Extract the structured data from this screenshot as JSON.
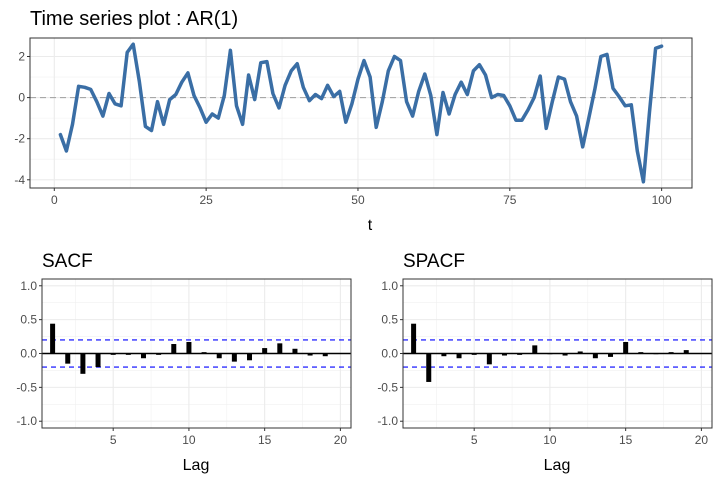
{
  "chart_data": [
    {
      "type": "line",
      "title": "Time series plot : AR(1)",
      "xlabel": "t",
      "ylabel": "",
      "xlim": [
        -4,
        105
      ],
      "ylim": [
        -4.4,
        2.9
      ],
      "x_ticks": [
        0,
        25,
        50,
        75,
        100
      ],
      "y_ticks": [
        -4,
        -2,
        0,
        2
      ],
      "x_tick_labels": [
        "0",
        "25",
        "50",
        "75",
        "100"
      ],
      "y_tick_labels": [
        "-4",
        "-2",
        "0",
        "2"
      ],
      "grid": true,
      "reference_line": 0,
      "line_color": "#3a6ea5",
      "ref_color": "#9e9e9e",
      "x": [
        1,
        2,
        3,
        4,
        5,
        6,
        7,
        8,
        9,
        10,
        11,
        12,
        13,
        14,
        15,
        16,
        17,
        18,
        19,
        20,
        21,
        22,
        23,
        24,
        25,
        26,
        27,
        28,
        29,
        30,
        31,
        32,
        33,
        34,
        35,
        36,
        37,
        38,
        39,
        40,
        41,
        42,
        43,
        44,
        45,
        46,
        47,
        48,
        49,
        50,
        51,
        52,
        53,
        54,
        55,
        56,
        57,
        58,
        59,
        60,
        61,
        62,
        63,
        64,
        65,
        66,
        67,
        68,
        69,
        70,
        71,
        72,
        73,
        74,
        75,
        76,
        77,
        78,
        79,
        80,
        81,
        82,
        83,
        84,
        85,
        86,
        87,
        88,
        89,
        90,
        91,
        92,
        93,
        94,
        95,
        96,
        97,
        98,
        99,
        100
      ],
      "values": [
        -1.8,
        -2.6,
        -1.3,
        0.55,
        0.5,
        0.4,
        -0.2,
        -0.9,
        0.2,
        -0.3,
        -0.4,
        2.2,
        2.6,
        0.8,
        -1.4,
        -1.6,
        -0.2,
        -1.3,
        -0.1,
        0.15,
        0.75,
        1.2,
        0.1,
        -0.5,
        -1.2,
        -0.8,
        -1.0,
        0.1,
        2.3,
        -0.4,
        -1.3,
        1.1,
        -0.1,
        1.7,
        1.75,
        0.2,
        -0.5,
        0.6,
        1.3,
        1.65,
        0.5,
        -0.15,
        0.15,
        -0.05,
        0.6,
        0.05,
        0.3,
        -1.2,
        -0.3,
        0.9,
        1.8,
        1.0,
        -1.45,
        -0.2,
        1.3,
        2.0,
        1.8,
        -0.2,
        -0.9,
        0.3,
        1.15,
        0.1,
        -1.8,
        0.25,
        -0.8,
        0.15,
        0.75,
        0.15,
        1.3,
        1.6,
        1.1,
        0.0,
        0.15,
        0.1,
        -0.4,
        -1.1,
        -1.1,
        -0.6,
        0.0,
        1.05,
        -1.5,
        -0.2,
        1.0,
        0.9,
        -0.2,
        -0.9,
        -2.4,
        -1.0,
        0.4,
        2.0,
        2.1,
        0.45,
        0.05,
        -0.4,
        -0.35,
        -2.6,
        -4.1,
        -0.7,
        2.4,
        2.5
      ]
    },
    {
      "type": "bar",
      "title": "SACF",
      "xlabel": "Lag",
      "ylabel": "",
      "xlim": [
        0.3,
        20.7
      ],
      "ylim": [
        -1.1,
        1.1
      ],
      "x_ticks": [
        5,
        10,
        15,
        20
      ],
      "y_ticks": [
        -1.0,
        -0.5,
        0.0,
        0.5,
        1.0
      ],
      "x_tick_labels": [
        "5",
        "10",
        "15",
        "20"
      ],
      "y_tick_labels": [
        "-1.0",
        "-0.5",
        "0.0",
        "0.5",
        "1.0"
      ],
      "grid": true,
      "confidence_band": [
        -0.2,
        0.2
      ],
      "band_color": "#0000ff",
      "bar_color": "#000000",
      "categories": [
        1,
        2,
        3,
        4,
        5,
        6,
        7,
        8,
        9,
        10,
        11,
        12,
        13,
        14,
        15,
        16,
        17,
        18,
        19
      ],
      "values": [
        0.44,
        -0.15,
        -0.3,
        -0.2,
        -0.02,
        -0.02,
        -0.07,
        -0.02,
        0.14,
        0.17,
        0.02,
        -0.07,
        -0.12,
        -0.1,
        0.08,
        0.15,
        0.07,
        -0.03,
        -0.04
      ]
    },
    {
      "type": "bar",
      "title": "SPACF",
      "xlabel": "Lag",
      "ylabel": "",
      "xlim": [
        0.3,
        20.7
      ],
      "ylim": [
        -1.1,
        1.1
      ],
      "x_ticks": [
        5,
        10,
        15,
        20
      ],
      "y_ticks": [
        -1.0,
        -0.5,
        0.0,
        0.5,
        1.0
      ],
      "x_tick_labels": [
        "5",
        "10",
        "15",
        "20"
      ],
      "y_tick_labels": [
        "-1.0",
        "-0.5",
        "0.0",
        "0.5",
        "1.0"
      ],
      "grid": true,
      "confidence_band": [
        -0.2,
        0.2
      ],
      "band_color": "#0000ff",
      "bar_color": "#000000",
      "categories": [
        1,
        2,
        3,
        4,
        5,
        6,
        7,
        8,
        9,
        10,
        11,
        12,
        13,
        14,
        15,
        16,
        17,
        18,
        19
      ],
      "values": [
        0.44,
        -0.42,
        -0.04,
        -0.07,
        -0.02,
        -0.16,
        -0.03,
        -0.02,
        0.12,
        -0.01,
        -0.03,
        0.03,
        -0.07,
        -0.05,
        0.17,
        0.02,
        -0.01,
        0.02,
        0.05
      ]
    }
  ]
}
